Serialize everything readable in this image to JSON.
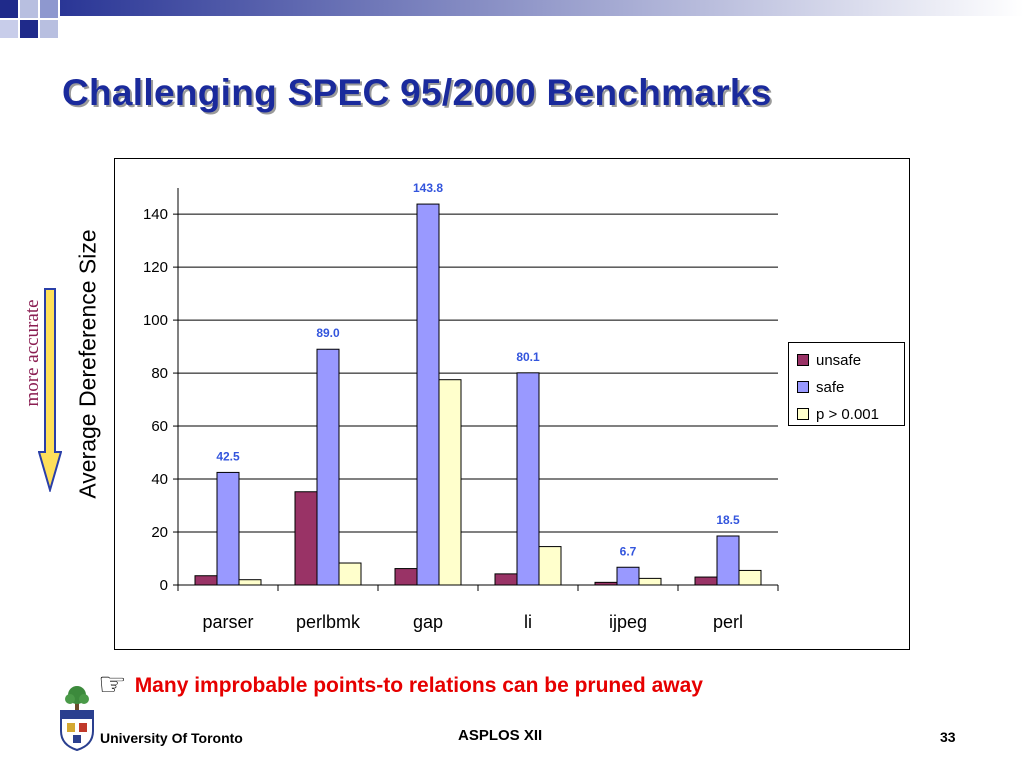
{
  "slide": {
    "title": "Challenging SPEC 95/2000 Benchmarks",
    "note": "Many improbable points-to relations can be pruned away",
    "note_icon": "pointing-hand-icon",
    "more_accurate_label": "more accurate",
    "footer_left": "University Of Toronto",
    "footer_center": "ASPLOS XII",
    "page_number": "33",
    "colors": {
      "title": "#1a2a9c",
      "note": "#e60000",
      "more_accurate": "#8b1e52",
      "arrow_fill": "#ffe05a",
      "arrow_stroke": "#2a3fa8"
    }
  },
  "chart_data": {
    "type": "bar",
    "categories": [
      "parser",
      "perlbmk",
      "gap",
      "li",
      "ijpeg",
      "perl"
    ],
    "series": [
      {
        "name": "unsafe",
        "color": "#993366",
        "values": [
          3.5,
          35.2,
          6.2,
          4.2,
          1.0,
          3.0
        ]
      },
      {
        "name": "safe",
        "color": "#9999ff",
        "values": [
          42.5,
          89.0,
          143.8,
          80.1,
          6.7,
          18.5
        ]
      },
      {
        "name": "p > 0.001",
        "color": "#ffffcc",
        "values": [
          2.0,
          8.3,
          77.5,
          14.5,
          2.5,
          5.5
        ]
      }
    ],
    "data_labels": {
      "series": "safe",
      "labels": [
        "42.5",
        "89.0",
        "143.8",
        "80.1",
        "6.7",
        "18.5"
      ],
      "color": "#3355dd"
    },
    "ylabel": "Average Dereference Size",
    "ylim": [
      0,
      150
    ],
    "yticks": [
      0,
      20,
      40,
      60,
      80,
      100,
      120,
      140
    ],
    "grid": true,
    "legend_placement": "right"
  }
}
